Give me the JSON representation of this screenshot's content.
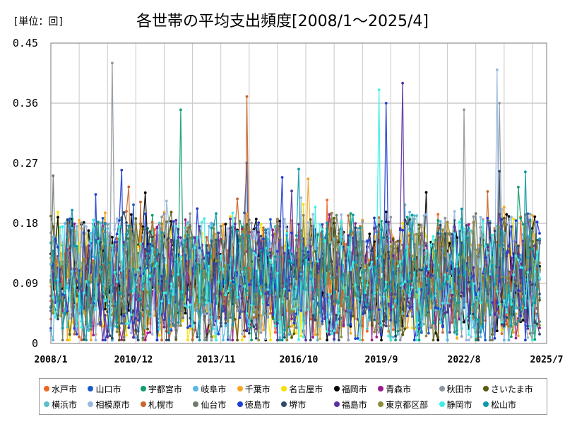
{
  "header": {
    "title": "各世帯の平均支出頻度[2008/1～2025/4]",
    "unit": "[単位：回]"
  },
  "chart_data": {
    "type": "line",
    "title": "各世帯の平均支出頻度[2008/1～2025/4]",
    "xlabel": "",
    "ylabel": "",
    "unit": "[単位：回]",
    "ylim": [
      0,
      0.45
    ],
    "y_ticks": [
      "0",
      "0.09",
      "0.18",
      "0.27",
      "0.36",
      "0.45"
    ],
    "x_range": [
      "2008/1",
      "2025/7"
    ],
    "x_ticks": [
      "2008/1",
      "2010/12",
      "2013/11",
      "2016/10",
      "2019/9",
      "2022/8",
      "2025/7"
    ],
    "grid": true,
    "legend_position": "bottom",
    "series": [
      {
        "name": "水戸市",
        "color": "#F26522"
      },
      {
        "name": "山口市",
        "color": "#1A5AC8"
      },
      {
        "name": "宇都宮市",
        "color": "#0F9E6E"
      },
      {
        "name": "岐阜市",
        "color": "#5AB4E6"
      },
      {
        "name": "千葉市",
        "color": "#F5A623"
      },
      {
        "name": "名古屋市",
        "color": "#F8E000"
      },
      {
        "name": "福岡市",
        "color": "#000000"
      },
      {
        "name": "青森市",
        "color": "#9B1B8E"
      },
      {
        "name": "秋田市",
        "color": "#8C96A0"
      },
      {
        "name": "さいたま市",
        "color": "#5A5A10"
      },
      {
        "name": "横浜市",
        "color": "#5BC0C8"
      },
      {
        "name": "相模原市",
        "color": "#98B8E0"
      },
      {
        "name": "札幌市",
        "color": "#C8652A"
      },
      {
        "name": "仙台市",
        "color": "#6E7A6E"
      },
      {
        "name": "徳島市",
        "color": "#1F3FD0"
      },
      {
        "name": "堺市",
        "color": "#2E4A66"
      },
      {
        "name": "福島市",
        "color": "#5A32A0"
      },
      {
        "name": "東京都区部",
        "color": "#8C8C3C"
      },
      {
        "name": "静岡市",
        "color": "#3CF0E6"
      },
      {
        "name": "松山市",
        "color": "#0E9AA8"
      }
    ],
    "notable_peaks": [
      {
        "x": "2010/3",
        "y": 0.42,
        "series": "秋田市"
      },
      {
        "x": "2023/10",
        "y": 0.41,
        "series": "相模原市"
      },
      {
        "x": "2020/6",
        "y": 0.39,
        "series": "福島市"
      },
      {
        "x": "2019/8",
        "y": 0.38,
        "series": "静岡市"
      },
      {
        "x": "2014/12",
        "y": 0.37,
        "series": "札幌市"
      },
      {
        "x": "2023/11",
        "y": 0.36,
        "series": "秋田市"
      },
      {
        "x": "2019/11",
        "y": 0.36,
        "series": "徳島市"
      },
      {
        "x": "2012/8",
        "y": 0.35,
        "series": "宇都宮市"
      },
      {
        "x": "2022/8",
        "y": 0.35,
        "series": "秋田市"
      }
    ]
  }
}
